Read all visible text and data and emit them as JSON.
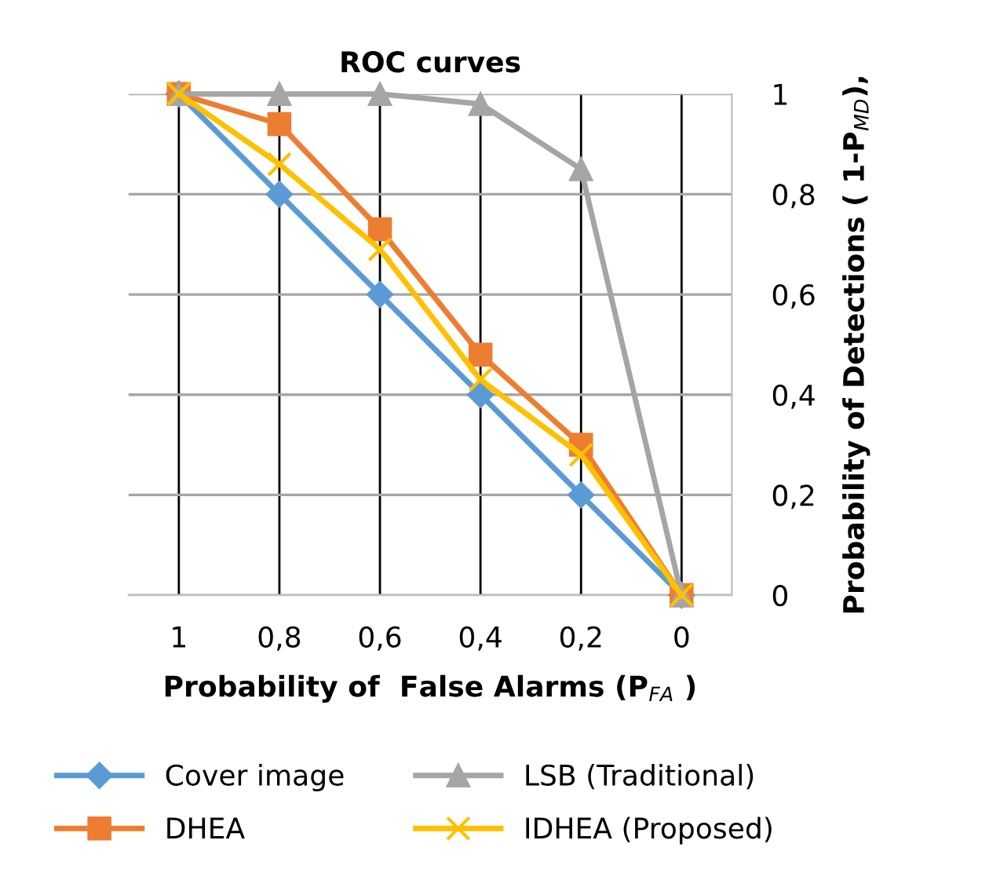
{
  "chart_data": {
    "type": "line",
    "title": "ROC curves",
    "xlabel": "Probability of  False Alarms (P$_{FA}$ )",
    "ylabel": "Probability of Detections ( 1-P$_{MD}$),",
    "categories": [
      "1",
      "0,8",
      "0,6",
      "0,4",
      "0,2",
      "0"
    ],
    "series": [
      {
        "name": "Cover image",
        "color": "#5b9bd5",
        "marker": "diamond",
        "values": [
          1,
          0.8,
          0.6,
          0.4,
          0.2,
          0
        ]
      },
      {
        "name": "DHEA",
        "color": "#ed7d31",
        "marker": "square",
        "values": [
          1,
          0.94,
          0.73,
          0.48,
          0.3,
          0
        ]
      },
      {
        "name": "LSB (Traditional)",
        "color": "#a5a5a5",
        "marker": "triangle",
        "values": [
          1,
          1,
          1,
          0.98,
          0.85,
          0
        ]
      },
      {
        "name": "IDHEA (Proposed)",
        "color": "#ffc000",
        "marker": "cross",
        "values": [
          1,
          0.86,
          0.69,
          0.43,
          0.28,
          0
        ]
      }
    ],
    "ylim": [
      0,
      1
    ],
    "yticks": [
      0,
      {
        "value": 0.2,
        "label": "0,2"
      },
      {
        "value": 0.4,
        "label": "0,4"
      },
      {
        "value": 0.6,
        "label": "0,6"
      },
      {
        "value": 0.8,
        "label": "0,8"
      },
      1
    ],
    "grid": true,
    "legend": "bottom",
    "line_style": "solid"
  }
}
